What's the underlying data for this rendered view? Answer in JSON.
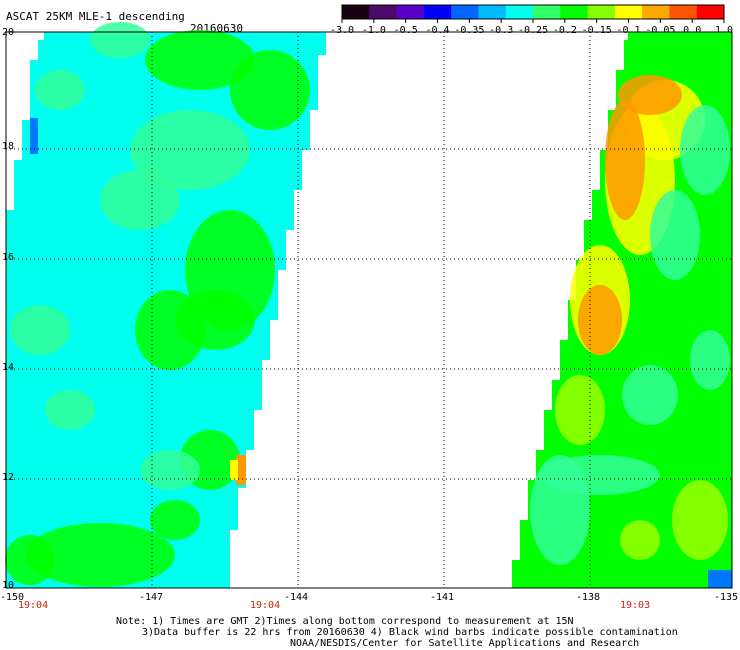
{
  "header": {
    "title": "ASCAT 25KM MLE-1 descending",
    "date": "20160630"
  },
  "colorbar": {
    "labels": [
      "-3.0",
      "-1.0",
      "-0.5",
      "-0.4",
      "-0.35",
      "-0.3",
      "-0.25",
      "-0.2",
      "-0.15",
      "-0.1",
      "-0.05",
      "0.0",
      "1.0"
    ],
    "colors": [
      "#1a0010",
      "#4a0a6a",
      "#5a00c8",
      "#0000ff",
      "#0066ff",
      "#00bbff",
      "#00ffee",
      "#33ff66",
      "#00ff00",
      "#88ff00",
      "#ffff00",
      "#ffaa00",
      "#ff5500",
      "#ff0000"
    ]
  },
  "map": {
    "lat_labels": [
      "20",
      "18",
      "16",
      "14",
      "12",
      "10"
    ],
    "lon_labels": [
      "-150",
      "-147",
      "-144",
      "-141",
      "-138",
      "-135"
    ],
    "swath_times": [
      "19:04",
      "19:04",
      "19:03"
    ],
    "value_colors": {
      "cyan": "#00ffee",
      "aqua_green": "#33ff99",
      "green": "#00ff00",
      "lime": "#99ff00",
      "yellow": "#ffff00",
      "orange": "#ff9900",
      "blue": "#0077ff"
    }
  },
  "footer": {
    "line1": "Note: 1) Times are GMT 2)Times along bottom correspond to measurement at 15N",
    "line2": "3)Data buffer is 22 hrs from 20160630 4) Black wind barbs indicate possible contamination",
    "line3": "NOAA/NESDIS/Center for Satellite Applications and Research"
  }
}
